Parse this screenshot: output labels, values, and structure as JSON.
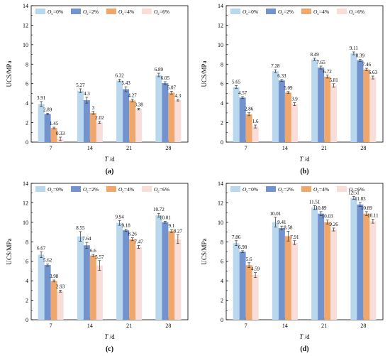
{
  "figure": {
    "colors": [
      "#b9d8ee",
      "#7393cf",
      "#efa76b",
      "#f8ddd8"
    ]
  },
  "chart_data": [
    {
      "type": "bar",
      "panel_label": "(a)",
      "categories": [
        "7",
        "14",
        "21",
        "28"
      ],
      "xlabel": "T /d",
      "ylabel": "UCS/MPa",
      "ylim": [
        0,
        14
      ],
      "yticks": [
        0,
        2,
        4,
        6,
        8,
        10,
        12,
        14
      ],
      "legend": "top-left",
      "series": [
        {
          "name": "Oc=0%",
          "values": [
            3.91,
            5.27,
            6.32,
            6.89
          ],
          "labels": [
            "3.91",
            "5.27",
            "6.32",
            "6.89"
          ],
          "errors": [
            0.25,
            0.2,
            0.12,
            0.18
          ]
        },
        {
          "name": "Oc=2%",
          "values": [
            2.89,
            4.3,
            5.43,
            6.05
          ],
          "labels": [
            "2.89",
            "4.3",
            "5.43",
            "6.05"
          ],
          "errors": [
            0.08,
            0.3,
            0.25,
            0.15
          ]
        },
        {
          "name": "Oc=4%",
          "values": [
            1.45,
            3.0,
            4.27,
            5.07
          ],
          "labels": [
            "1.45",
            "3",
            "4.27",
            "5.07"
          ],
          "errors": [
            0.08,
            0.15,
            0.13,
            0.15
          ]
        },
        {
          "name": "Oc=6%",
          "values": [
            0.33,
            2.02,
            3.38,
            4.3
          ],
          "labels": [
            "0.33",
            "2.02",
            "3.38",
            "4.3"
          ],
          "errors": [
            0.18,
            0.1,
            0.08,
            0.08
          ]
        }
      ]
    },
    {
      "type": "bar",
      "panel_label": "(b)",
      "categories": [
        "7",
        "14",
        "21",
        "28"
      ],
      "xlabel": "T /d",
      "ylabel": "UCS/MPa",
      "ylim": [
        0,
        14
      ],
      "yticks": [
        0,
        2,
        4,
        6,
        8,
        10,
        12,
        14
      ],
      "legend": "top-left",
      "series": [
        {
          "name": "Oc=0%",
          "values": [
            5.65,
            7.28,
            8.49,
            9.11
          ],
          "labels": [
            "5.65",
            "7.28",
            "8.49",
            "9.11"
          ],
          "errors": [
            0.15,
            0.15,
            0.12,
            0.15
          ]
        },
        {
          "name": "Oc=2%",
          "values": [
            4.57,
            6.33,
            7.65,
            8.39
          ],
          "labels": [
            "4.57",
            "6.33",
            "7.65",
            "8.39"
          ],
          "errors": [
            0.1,
            0.1,
            0.15,
            0.1
          ]
        },
        {
          "name": "Oc=4%",
          "values": [
            2.86,
            5.09,
            6.72,
            7.46
          ],
          "labels": [
            "2.86",
            "5.09",
            "6.72",
            "7.46"
          ],
          "errors": [
            0.15,
            0.1,
            0.15,
            0.12
          ]
        },
        {
          "name": "Oc=6%",
          "values": [
            1.6,
            3.9,
            5.81,
            6.63
          ],
          "labels": [
            "1.6",
            "3.9",
            "5.81",
            "6.63"
          ],
          "errors": [
            0.15,
            0.15,
            0.18,
            0.15
          ]
        }
      ]
    },
    {
      "type": "bar",
      "panel_label": "(c)",
      "categories": [
        "7",
        "14",
        "21",
        "28"
      ],
      "xlabel": "T /d",
      "ylabel": "UCS/MPa",
      "ylim": [
        0,
        14
      ],
      "yticks": [
        0,
        2,
        4,
        6,
        8,
        10,
        12,
        14
      ],
      "legend": "top-left",
      "series": [
        {
          "name": "Oc=0%",
          "values": [
            6.67,
            8.55,
            9.94,
            10.72
          ],
          "labels": [
            "6.67",
            "8.55",
            "9.94",
            "10.72"
          ],
          "errors": [
            0.3,
            0.5,
            0.25,
            0.2
          ]
        },
        {
          "name": "Oc=2%",
          "values": [
            5.62,
            7.64,
            9.18,
            10.01
          ],
          "labels": [
            "5.62",
            "7.64",
            "9.18",
            "10.01"
          ],
          "errors": [
            0.1,
            0.3,
            0.1,
            0.1
          ]
        },
        {
          "name": "Oc=4%",
          "values": [
            3.98,
            6.6,
            8.26,
            9.1
          ],
          "labels": [
            "3.98",
            "6.6",
            "8.26",
            "9.1"
          ],
          "errors": [
            0.1,
            0.1,
            0.15,
            0.15
          ]
        },
        {
          "name": "Oc=6%",
          "values": [
            2.93,
            5.57,
            7.47,
            8.27
          ],
          "labels": [
            "2.93",
            "5.57",
            "7.47",
            "8.27"
          ],
          "errors": [
            0.1,
            0.5,
            0.15,
            0.45
          ]
        }
      ]
    },
    {
      "type": "bar",
      "panel_label": "(d)",
      "categories": [
        "7",
        "14",
        "21",
        "28"
      ],
      "xlabel": "T /d",
      "ylabel": "UCS/MPa",
      "ylim": [
        0,
        14
      ],
      "yticks": [
        0,
        2,
        4,
        6,
        8,
        10,
        12,
        14
      ],
      "legend": "top-left",
      "series": [
        {
          "name": "Oc=0%",
          "values": [
            7.86,
            10.01,
            11.51,
            12.51
          ],
          "labels": [
            "7.86",
            "10.01",
            "11.51",
            "12.51"
          ],
          "errors": [
            0.25,
            0.5,
            0.2,
            0.15
          ]
        },
        {
          "name": "Oc=2%",
          "values": [
            6.98,
            9.41,
            10.89,
            11.83
          ],
          "labels": [
            "6.98",
            "9.41",
            "10.89",
            "11.83"
          ],
          "errors": [
            0.1,
            0.2,
            0.2,
            0.2
          ]
        },
        {
          "name": "Oc=4%",
          "values": [
            5.6,
            8.58,
            10.03,
            10.89
          ],
          "labels": [
            "5.6",
            "8.58",
            "10.03",
            "10.89"
          ],
          "errors": [
            0.25,
            0.5,
            0.2,
            0.2
          ]
        },
        {
          "name": "Oc=6%",
          "values": [
            4.59,
            7.91,
            9.26,
            10.11
          ],
          "labels": [
            "4.59",
            "7.91",
            "9.26",
            "10.11"
          ],
          "errors": [
            0.25,
            0.2,
            0.15,
            0.2
          ]
        }
      ]
    }
  ]
}
